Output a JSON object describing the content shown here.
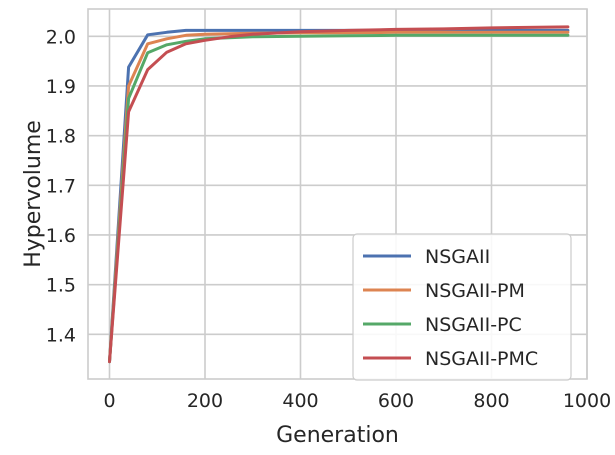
{
  "chart_data": {
    "type": "line",
    "title": "",
    "xlabel": "Generation",
    "ylabel": "Hypervolume",
    "xlim": [
      -45,
      1000
    ],
    "ylim": [
      1.31,
      2.055
    ],
    "xticks": [
      0,
      200,
      400,
      600,
      800,
      1000
    ],
    "yticks": [
      1.4,
      1.5,
      1.6,
      1.7,
      1.8,
      1.9,
      2.0
    ],
    "grid": true,
    "legend": "lower-right",
    "series": [
      {
        "name": "NSGAII",
        "color": "#4c72b0",
        "x": [
          0,
          40,
          80,
          120,
          160,
          200,
          300,
          400,
          500,
          600,
          700,
          800,
          960
        ],
        "y": [
          1.345,
          1.938,
          2.003,
          2.008,
          2.012,
          2.012,
          2.012,
          2.012,
          2.012,
          2.012,
          2.012,
          2.012,
          2.012
        ]
      },
      {
        "name": "NSGAII-PM",
        "color": "#dd8452",
        "x": [
          0,
          40,
          80,
          120,
          160,
          200,
          300,
          400,
          500,
          600,
          700,
          800,
          960
        ],
        "y": [
          1.345,
          1.9,
          1.985,
          1.995,
          2.002,
          2.004,
          2.006,
          2.007,
          2.007,
          2.008,
          2.008,
          2.008,
          2.008
        ]
      },
      {
        "name": "NSGAII-PC",
        "color": "#55a868",
        "x": [
          0,
          40,
          80,
          120,
          160,
          200,
          300,
          400,
          500,
          600,
          700,
          800,
          960
        ],
        "y": [
          1.345,
          1.875,
          1.967,
          1.983,
          1.99,
          1.995,
          1.999,
          2.0,
          2.001,
          2.002,
          2.002,
          2.002,
          2.002
        ]
      },
      {
        "name": "NSGAII-PMC",
        "color": "#c44e52",
        "x": [
          0,
          40,
          80,
          120,
          160,
          200,
          250,
          300,
          400,
          500,
          600,
          700,
          800,
          960
        ],
        "y": [
          1.345,
          1.848,
          1.933,
          1.968,
          1.985,
          1.992,
          1.999,
          2.004,
          2.009,
          2.012,
          2.014,
          2.015,
          2.017,
          2.019
        ]
      }
    ]
  }
}
